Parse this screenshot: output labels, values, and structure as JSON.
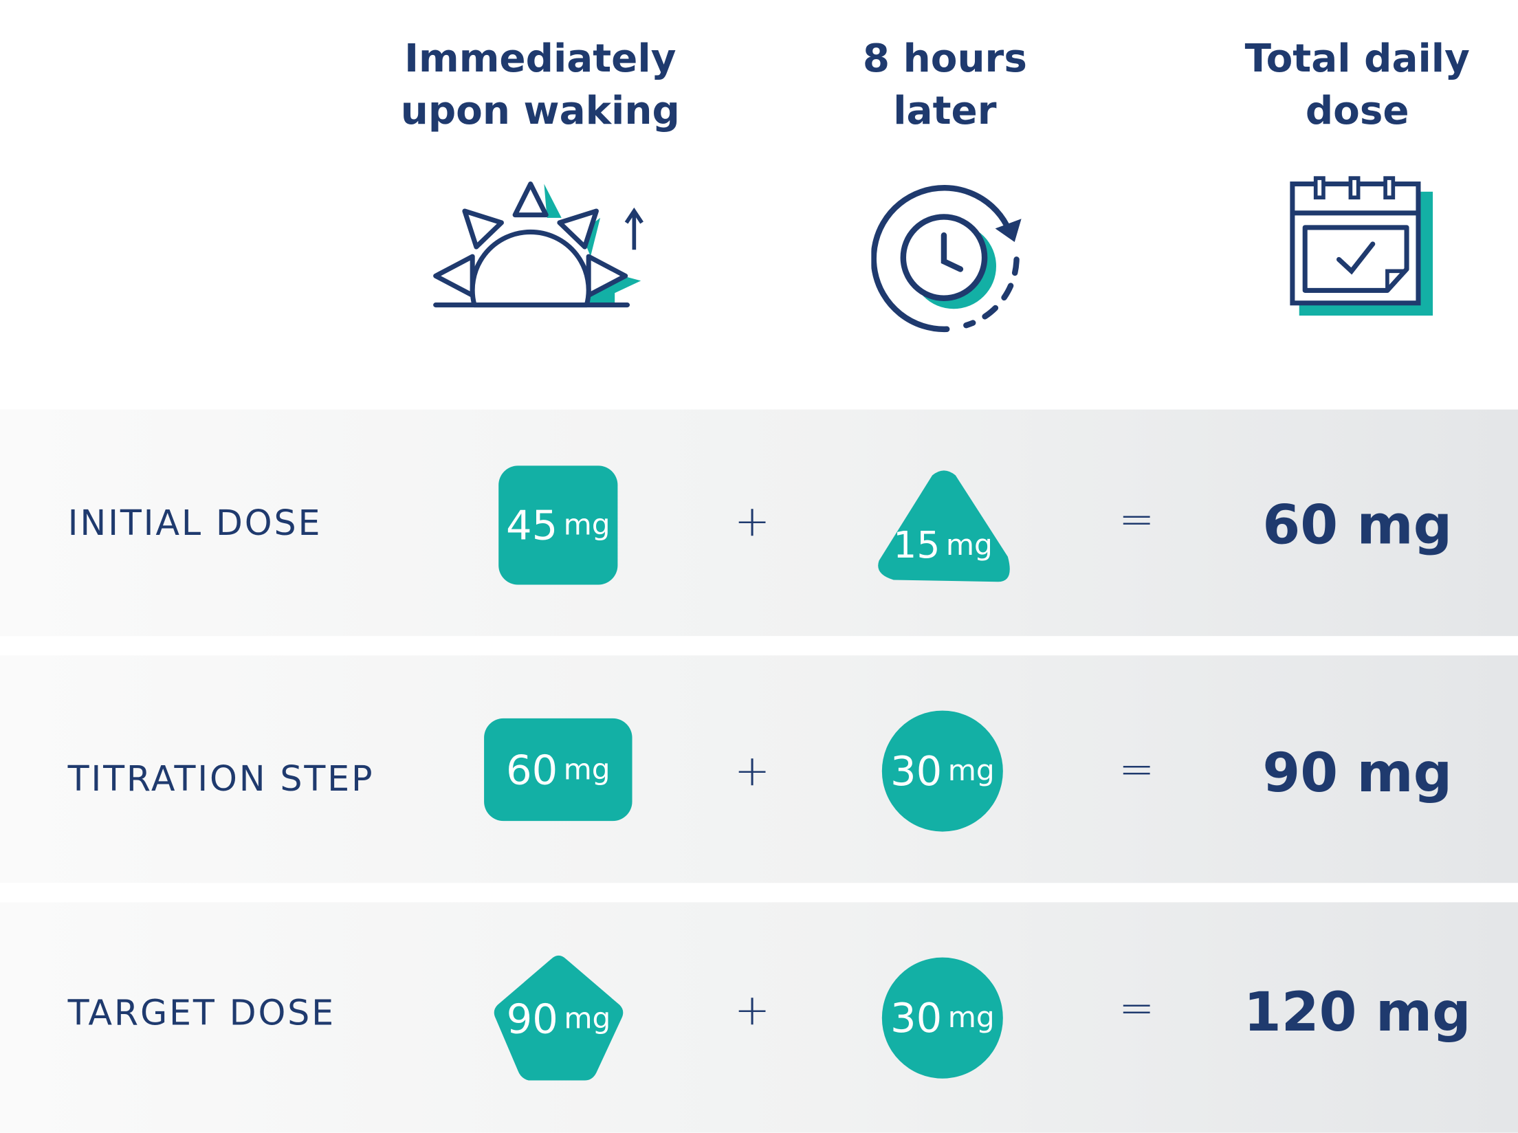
{
  "headers": {
    "morning": "Immediately\nupon waking",
    "later": "8 hours\nlater",
    "total": "Total daily\ndose"
  },
  "icons": {
    "morning": "sunrise-icon",
    "later": "clock-refresh-icon",
    "total": "calendar-check-icon"
  },
  "colors": {
    "navy": "#1f3a6e",
    "teal": "#13b0a5"
  },
  "operators": {
    "plus": "+",
    "equals": "="
  },
  "rows": [
    {
      "label": "INITIAL DOSE",
      "morning": {
        "value": "45",
        "unit": "mg",
        "shape": "rounded-square"
      },
      "later": {
        "value": "15",
        "unit": "mg",
        "shape": "triangle"
      },
      "total": "60 mg"
    },
    {
      "label": "TITRATION STEP",
      "morning": {
        "value": "60",
        "unit": "mg",
        "shape": "rounded-rectangle"
      },
      "later": {
        "value": "30",
        "unit": "mg",
        "shape": "circle"
      },
      "total": "90 mg"
    },
    {
      "label": "TARGET DOSE",
      "morning": {
        "value": "90",
        "unit": "mg",
        "shape": "pentagon"
      },
      "later": {
        "value": "30",
        "unit": "mg",
        "shape": "circle"
      },
      "total": "120 mg"
    }
  ]
}
